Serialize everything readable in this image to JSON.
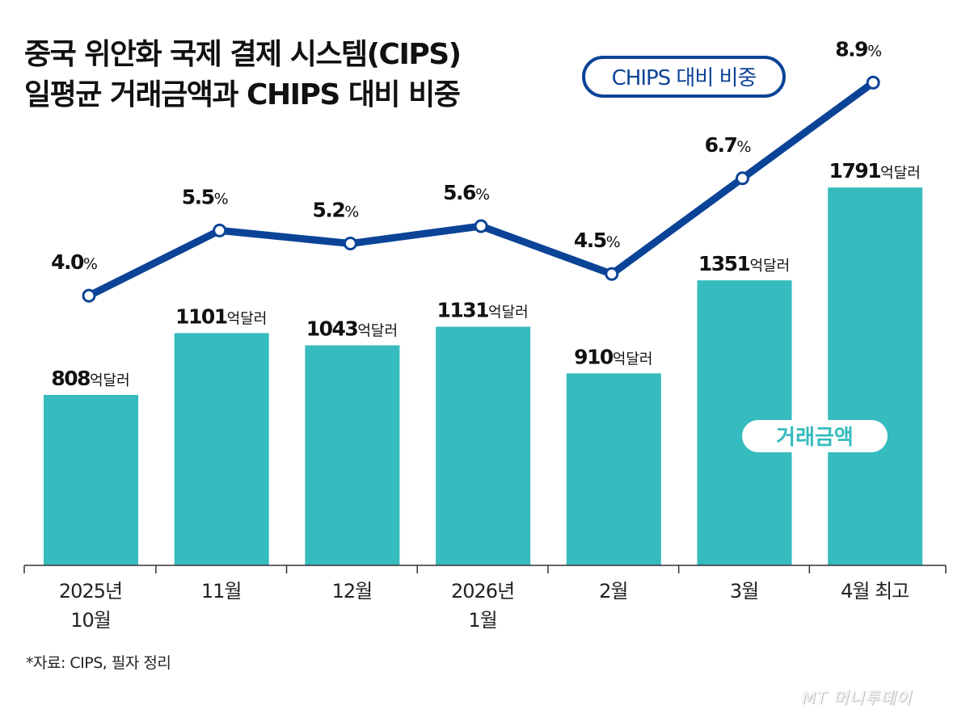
{
  "title_lines": [
    "중국 위안화 국제 결제 시스템(CIPS)",
    "일평균 거래금액과 CHIPS 대비 비중"
  ],
  "note": "*자료: CIPS, 필자 정리",
  "logo": "MT 머니투데이",
  "chart_data": {
    "type": "bar+line",
    "categories": [
      [
        "2025년",
        "10월"
      ],
      [
        "11월"
      ],
      [
        "12월"
      ],
      [
        "2026년",
        "1월"
      ],
      [
        "2월"
      ],
      [
        "3월"
      ],
      [
        "4월 최고"
      ]
    ],
    "series": [
      {
        "name": "거래금액",
        "type": "bar",
        "values": [
          808,
          1101,
          1043,
          1131,
          910,
          1351,
          1791
        ],
        "unit": "억달러",
        "color": "#36bbbe"
      },
      {
        "name": "CHIPS 대비 비중",
        "type": "line",
        "values": [
          4.0,
          5.5,
          5.2,
          5.6,
          4.5,
          6.7,
          8.9
        ],
        "unit": "%",
        "color": "#0b4497"
      }
    ],
    "bar_ylim": [
      0,
      2680
    ],
    "line_ylim": [
      -2.2,
      10.8
    ],
    "grid": false
  }
}
